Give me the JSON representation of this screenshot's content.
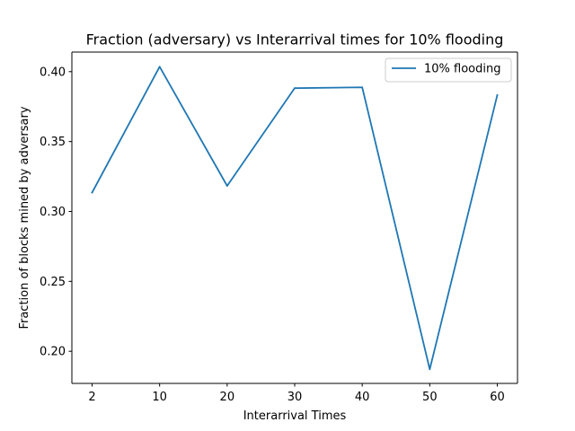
{
  "chart_data": {
    "type": "line",
    "title": "Fraction (adversary) vs Interarrival times for 10% flooding",
    "xlabel": "Interarrival Times",
    "ylabel": "Fraction of blocks mined by adversary",
    "categories": [
      "2",
      "10",
      "20",
      "30",
      "40",
      "50",
      "60"
    ],
    "series": [
      {
        "name": "10% flooding",
        "values": [
          0.3135,
          0.4035,
          0.3183,
          0.3882,
          0.3888,
          0.1871,
          0.3832
        ],
        "color": "#1f77b4"
      }
    ],
    "yticks": [
      "0.20",
      "0.25",
      "0.30",
      "0.35",
      "0.40"
    ],
    "ylim": [
      0.177,
      0.414
    ],
    "grid": false,
    "legend": "top-right"
  }
}
